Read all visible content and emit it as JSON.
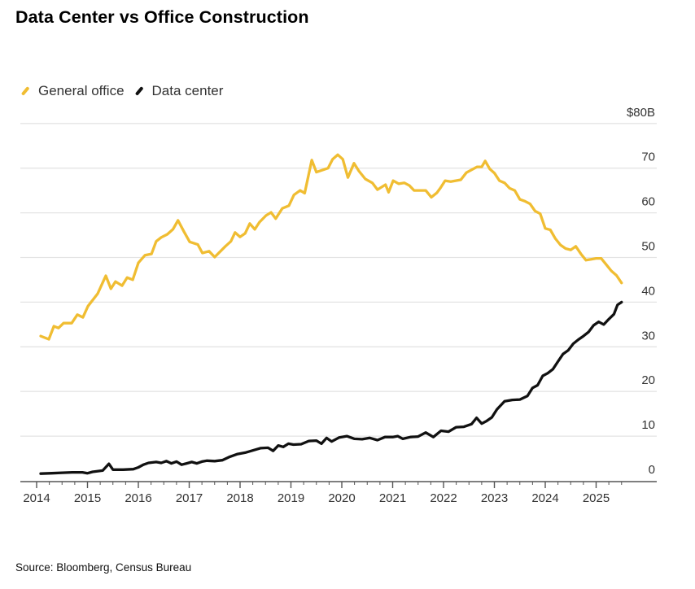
{
  "title": "Data Center vs Office Construction",
  "source": "Source: Bloomberg, Census Bureau",
  "colors": {
    "general_office": "#f0bd32",
    "data_center": "#111111",
    "grid": "#e4e4e4",
    "axis": "#555555"
  },
  "chart_data": {
    "type": "line",
    "title": "Data Center vs Office Construction",
    "xlabel": "",
    "ylabel": "",
    "grid": true,
    "legend_position": "top-left",
    "xlim": [
      2014,
      2026.2
    ],
    "ylim": [
      0,
      80
    ],
    "x_ticks": [
      2014,
      2015,
      2016,
      2017,
      2018,
      2019,
      2020,
      2021,
      2022,
      2023,
      2024,
      2025
    ],
    "x_tick_labels": [
      "2014",
      "2015",
      "2016",
      "2017",
      "2018",
      "2019",
      "2020",
      "2021",
      "2022",
      "2023",
      "2024",
      "2025"
    ],
    "y_ticks": [
      0,
      10,
      20,
      30,
      40,
      50,
      60,
      70,
      80
    ],
    "y_tick_labels": [
      "0",
      "10",
      "20",
      "30",
      "40",
      "50",
      "60",
      "70",
      "$80B"
    ],
    "y_axis_side": "right",
    "series": [
      {
        "name": "General office",
        "color": "#f0bd32",
        "x": [
          2014.08,
          2014.24,
          2014.34,
          2014.43,
          2014.53,
          2014.69,
          2014.8,
          2014.91,
          2015.01,
          2015.2,
          2015.36,
          2015.46,
          2015.55,
          2015.68,
          2015.78,
          2015.89,
          2016.0,
          2016.13,
          2016.26,
          2016.35,
          2016.45,
          2016.57,
          2016.68,
          2016.78,
          2016.9,
          2017.01,
          2017.17,
          2017.26,
          2017.39,
          2017.5,
          2017.71,
          2017.82,
          2017.9,
          2018.0,
          2018.1,
          2018.19,
          2018.29,
          2018.38,
          2018.51,
          2018.61,
          2018.7,
          2018.83,
          2018.96,
          2019.06,
          2019.18,
          2019.27,
          2019.41,
          2019.5,
          2019.73,
          2019.82,
          2019.92,
          2020.02,
          2020.12,
          2020.24,
          2020.34,
          2020.46,
          2020.6,
          2020.7,
          2020.86,
          2020.92,
          2021.01,
          2021.12,
          2021.23,
          2021.33,
          2021.42,
          2021.65,
          2021.76,
          2021.87,
          2021.94,
          2022.03,
          2022.14,
          2022.34,
          2022.45,
          2022.58,
          2022.66,
          2022.75,
          2022.82,
          2022.91,
          2023.0,
          2023.1,
          2023.2,
          2023.3,
          2023.4,
          2023.5,
          2023.6,
          2023.7,
          2023.8,
          2023.9,
          2024.0,
          2024.1,
          2024.2,
          2024.3,
          2024.4,
          2024.5,
          2024.6,
          2024.7,
          2024.8,
          2024.9,
          2025.0,
          2025.1,
          2025.2,
          2025.3,
          2025.4,
          2025.5
        ],
        "values": [
          32.4,
          31.7,
          34.6,
          34.2,
          35.3,
          35.3,
          37.2,
          36.6,
          39.1,
          41.9,
          45.9,
          43.0,
          44.6,
          43.7,
          45.5,
          45.0,
          48.8,
          50.5,
          50.8,
          53.6,
          54.5,
          55.2,
          56.3,
          58.3,
          55.7,
          53.5,
          52.9,
          51.0,
          51.4,
          50.1,
          52.5,
          53.6,
          55.6,
          54.6,
          55.4,
          57.6,
          56.3,
          57.9,
          59.4,
          60.1,
          58.7,
          61.0,
          61.6,
          64.0,
          65.0,
          64.4,
          71.8,
          69.1,
          70.0,
          72.0,
          73.0,
          72.0,
          67.9,
          71.1,
          69.3,
          67.6,
          66.7,
          65.2,
          66.3,
          64.6,
          67.2,
          66.5,
          66.7,
          66.1,
          65.0,
          65.0,
          63.5,
          64.5,
          65.6,
          67.2,
          67.0,
          67.4,
          69.0,
          69.8,
          70.3,
          70.3,
          71.6,
          69.8,
          68.9,
          67.2,
          66.7,
          65.5,
          65.0,
          63.0,
          62.6,
          62.0,
          60.4,
          59.8,
          56.5,
          56.2,
          54.2,
          52.8,
          52.0,
          51.7,
          52.5,
          50.8,
          49.4,
          49.6,
          49.8,
          49.8,
          48.4,
          47.0,
          46.0,
          44.3
        ]
      },
      {
        "name": "Data center",
        "color": "#111111",
        "x": [
          2014.08,
          2014.3,
          2014.5,
          2014.7,
          2014.9,
          2015.0,
          2015.1,
          2015.3,
          2015.42,
          2015.5,
          2015.7,
          2015.9,
          2016.0,
          2016.1,
          2016.2,
          2016.35,
          2016.45,
          2016.55,
          2016.65,
          2016.75,
          2016.85,
          2016.95,
          2017.05,
          2017.15,
          2017.25,
          2017.35,
          2017.5,
          2017.65,
          2017.8,
          2017.95,
          2018.1,
          2018.25,
          2018.4,
          2018.55,
          2018.65,
          2018.75,
          2018.85,
          2018.95,
          2019.05,
          2019.2,
          2019.35,
          2019.5,
          2019.6,
          2019.7,
          2019.8,
          2019.95,
          2020.1,
          2020.25,
          2020.4,
          2020.55,
          2020.7,
          2020.85,
          2021.0,
          2021.1,
          2021.2,
          2021.35,
          2021.5,
          2021.65,
          2021.8,
          2021.95,
          2022.1,
          2022.25,
          2022.4,
          2022.55,
          2022.65,
          2022.75,
          2022.85,
          2022.95,
          2023.05,
          2023.2,
          2023.35,
          2023.5,
          2023.65,
          2023.75,
          2023.85,
          2023.95,
          2024.05,
          2024.15,
          2024.25,
          2024.35,
          2024.45,
          2024.55,
          2024.65,
          2024.75,
          2024.85,
          2024.95,
          2025.05,
          2025.15,
          2025.25,
          2025.35,
          2025.42,
          2025.5
        ],
        "values": [
          1.6,
          1.7,
          1.8,
          1.9,
          1.9,
          1.7,
          2.0,
          2.3,
          3.8,
          2.5,
          2.5,
          2.6,
          3.0,
          3.6,
          4.0,
          4.2,
          4.0,
          4.4,
          3.9,
          4.3,
          3.6,
          3.9,
          4.2,
          3.9,
          4.3,
          4.5,
          4.4,
          4.6,
          5.4,
          6.0,
          6.3,
          6.8,
          7.3,
          7.4,
          6.7,
          7.9,
          7.6,
          8.3,
          8.1,
          8.2,
          8.9,
          9.0,
          8.3,
          9.6,
          8.8,
          9.7,
          10.0,
          9.4,
          9.3,
          9.6,
          9.1,
          9.8,
          9.8,
          10.0,
          9.4,
          9.8,
          9.9,
          10.8,
          9.8,
          11.2,
          11.0,
          12.0,
          12.1,
          12.7,
          14.1,
          12.8,
          13.4,
          14.2,
          16.0,
          17.8,
          18.1,
          18.2,
          19.0,
          20.8,
          21.4,
          23.5,
          24.1,
          25.0,
          26.7,
          28.4,
          29.2,
          30.7,
          31.6,
          32.4,
          33.3,
          34.8,
          35.6,
          35.0,
          36.2,
          37.3,
          39.4,
          40.0
        ]
      }
    ]
  },
  "legend": {
    "items": [
      {
        "label": "General office",
        "color": "#f0bd32"
      },
      {
        "label": "Data center",
        "color": "#111111"
      }
    ]
  }
}
